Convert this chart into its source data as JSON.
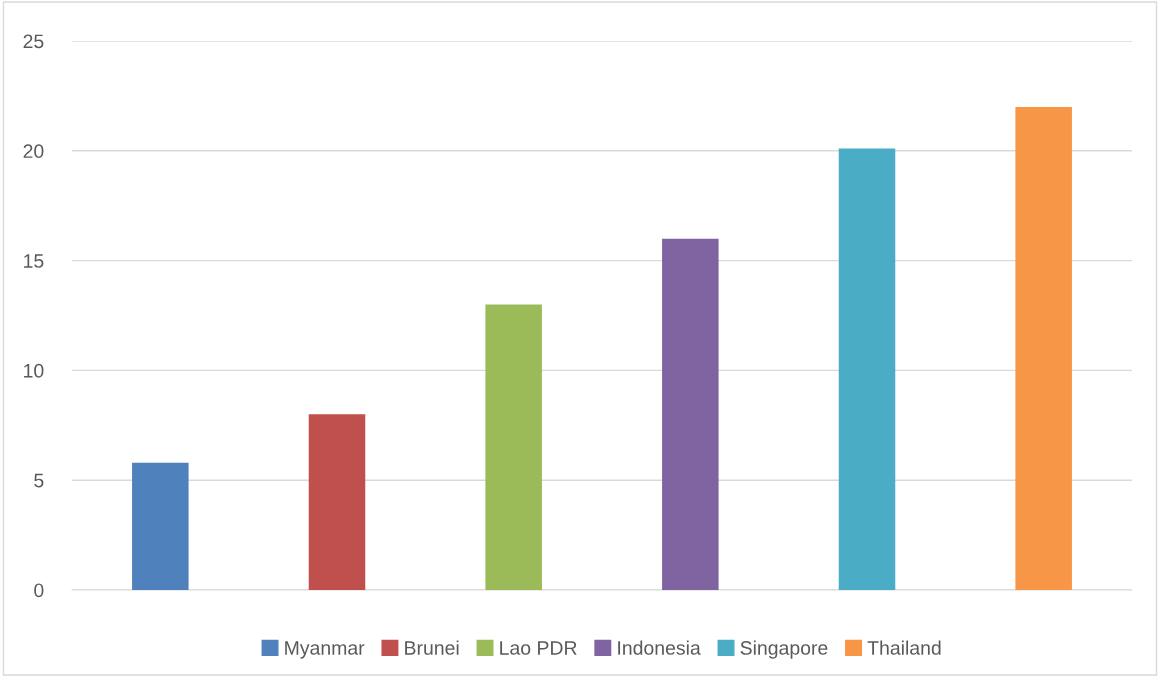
{
  "chart_data": {
    "type": "bar",
    "categories": [
      null,
      null,
      null,
      null,
      null,
      null
    ],
    "series": [
      {
        "name": "Myanmar",
        "color": "#4f81bd",
        "values": [
          5.8,
          null,
          null,
          null,
          null,
          null
        ]
      },
      {
        "name": "Brunei",
        "color": "#c0504d",
        "values": [
          null,
          8.0,
          null,
          null,
          null,
          null
        ]
      },
      {
        "name": "Lao PDR",
        "color": "#9bbb59",
        "values": [
          null,
          null,
          13,
          null,
          null,
          null
        ]
      },
      {
        "name": "Indonesia",
        "color": "#8064a2",
        "values": [
          null,
          null,
          null,
          16,
          null,
          null
        ]
      },
      {
        "name": "Singapore",
        "color": "#4bacc6",
        "values": [
          null,
          null,
          null,
          null,
          20.1,
          null
        ]
      },
      {
        "name": "Thailand",
        "color": "#f79646",
        "values": [
          null,
          null,
          null,
          null,
          null,
          22
        ]
      }
    ],
    "ylim": [
      0,
      25
    ],
    "yticks": [
      0,
      5,
      10,
      15,
      20,
      25
    ],
    "grid": "y",
    "legend": "bottom"
  }
}
